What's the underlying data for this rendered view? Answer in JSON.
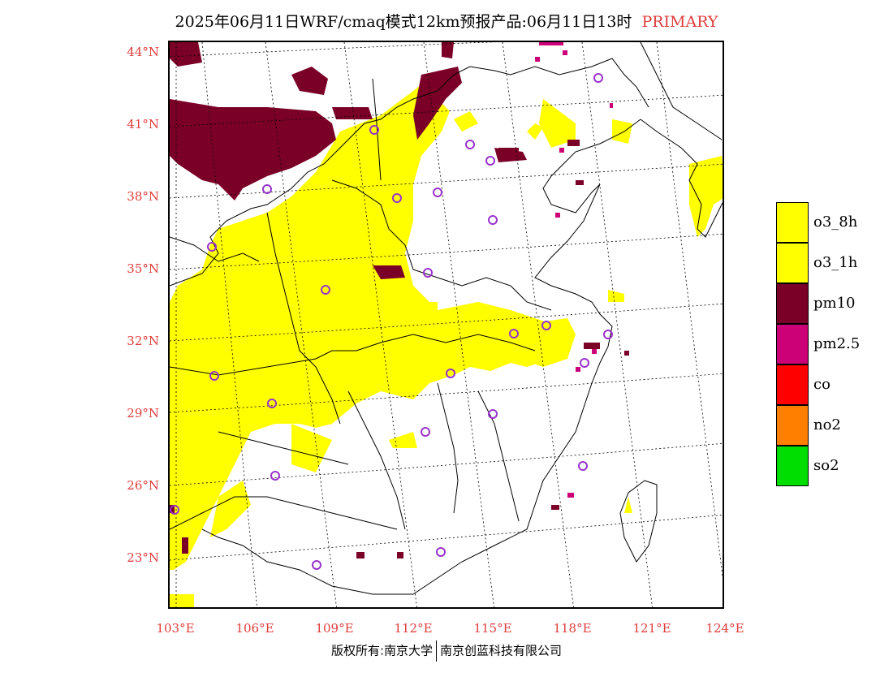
{
  "header": {
    "title": "2025年06月11日WRF/cmaq模式12km预报产品:06月11日13时",
    "tag": "PRIMARY"
  },
  "map": {
    "lat_labels": [
      "44°N",
      "41°N",
      "38°N",
      "35°N",
      "32°N",
      "29°N",
      "26°N",
      "23°N"
    ],
    "lon_labels": [
      "103°E",
      "106°E",
      "109°E",
      "112°E",
      "115°E",
      "118°E",
      "121°E",
      "124°E"
    ],
    "colors": {
      "border": "#000000",
      "graticule": "#000000",
      "axis_labels": "#e03c3c",
      "station_marker": "#9932cc"
    }
  },
  "legend": {
    "items": [
      {
        "label": "o3_8h",
        "color": "#ffff00"
      },
      {
        "label": "o3_1h",
        "color": "#ffff00"
      },
      {
        "label": "pm10",
        "color": "#7b0028"
      },
      {
        "label": "pm2.5",
        "color": "#cc0077"
      },
      {
        "label": "co",
        "color": "#ff0000"
      },
      {
        "label": "no2",
        "color": "#ff7f00"
      },
      {
        "label": "so2",
        "color": "#00dd00"
      }
    ]
  },
  "footer": {
    "copyright_left": "版权所有:南京大学",
    "copyright_right": "南京创蓝科技有限公司"
  }
}
